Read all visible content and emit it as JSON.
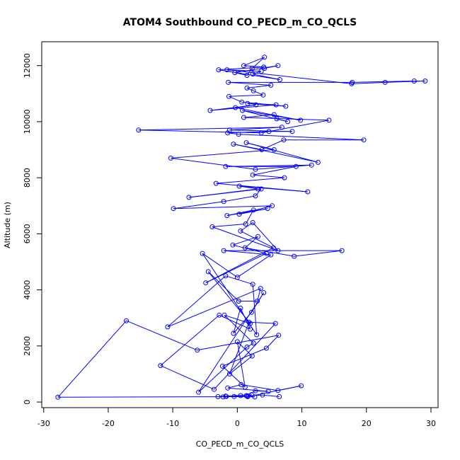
{
  "chart_data": {
    "type": "line",
    "title": "ATOM4 Southbound CO_PECD_m_CO_QCLS",
    "xlabel": "CO_PECD_m_CO_QCLS",
    "ylabel": "Altitude (m)",
    "xlim": [
      -30.3,
      31.1
    ],
    "ylim": [
      -200,
      12850
    ],
    "xticks": [
      -30,
      -20,
      -10,
      0,
      10,
      20,
      30
    ],
    "yticks": [
      0,
      2000,
      4000,
      6000,
      8000,
      10000,
      12000
    ],
    "marker": "open-circle",
    "line_color": "#0000ff",
    "grid": false,
    "series": [
      {
        "x": [
          6.5,
          3.9,
          1.6,
          2.7,
          -0.5,
          0.5,
          -3.0,
          2.2,
          -1.7,
          -2.2,
          -1.8,
          1.4,
          2.8,
          4.8,
          -1.5,
          0.6,
          6.3,
          9.9,
          1.6,
          -27.8,
          -17.2,
          -6.2,
          6.4,
          4.5,
          -2.3,
          1.2,
          0.0,
          2.3,
          -1.2,
          1.8,
          5.9,
          -3.6,
          -11.9,
          -2.8,
          2.0,
          0.5,
          -0.6,
          2.2,
          4.1,
          -6.0,
          1.5,
          2.5,
          -2.0,
          2.0,
          -4.5,
          0.2,
          3.1,
          3.6,
          -10.8,
          -1.8,
          2.4,
          3.0,
          -5.4,
          0.0,
          5.2,
          -2.1,
          16.2,
          8.8,
          1.2,
          3.2,
          -0.7,
          4.5,
          -4.9,
          5.6,
          0.5,
          2.4,
          6.3,
          -3.9,
          1.3,
          2.5,
          -1.6,
          4.7,
          0.3,
          5.4,
          -9.9,
          -2.1,
          2.8,
          3.7,
          -7.5,
          3.2,
          0.3,
          10.9,
          -3.3,
          7.3,
          2.4,
          9.1,
          -1.8,
          11.5,
          2.8,
          -10.3,
          5.7,
          1.4,
          12.5,
          -0.6,
          3.8,
          7.2,
          19.6,
          0.2,
          -1.5,
          4.9,
          8.5,
          -1.2,
          6.9,
          -15.3,
          3.7,
          14.2,
          1.0,
          5.7,
          6.1,
          7.8,
          0.8,
          9.8,
          -0.3,
          2.9,
          -4.2,
          6.0,
          1.6,
          7.5,
          0.7,
          -1.3,
          4.0,
          2.5,
          1.5,
          5.2,
          -1.4,
          17.8,
          27.4,
          29.1,
          22.9,
          17.7,
          -1.6,
          3.7,
          2.4,
          6.6,
          -2.9,
          4.1,
          1.0,
          4.2,
          2.3,
          1.5,
          -0.4,
          6.3,
          4.2
        ],
        "y": [
          190,
          250,
          220,
          180,
          200,
          230,
          190,
          260,
          200,
          180,
          210,
          230,
          400,
          380,
          500,
          620,
          410,
          580,
          190,
          170,
          2900,
          1850,
          2380,
          1920,
          1280,
          530,
          2150,
          1640,
          1000,
          2850,
          2800,
          450,
          1300,
          3100,
          2600,
          3350,
          2450,
          3200,
          3900,
          350,
          1960,
          2100,
          3100,
          2800,
          4650,
          3600,
          3600,
          4050,
          2680,
          4500,
          4200,
          2400,
          5300,
          4450,
          5250,
          5400,
          5400,
          5200,
          5500,
          5900,
          5600,
          5300,
          4250,
          5500,
          6100,
          6400,
          5400,
          6250,
          6350,
          6850,
          6650,
          6900,
          6700,
          7000,
          6900,
          7150,
          7350,
          7600,
          7300,
          7600,
          7700,
          7500,
          7800,
          8000,
          8100,
          8400,
          8400,
          8450,
          8300,
          8700,
          9000,
          9250,
          8550,
          9200,
          9000,
          9350,
          9350,
          9550,
          9600,
          9650,
          9650,
          9700,
          9800,
          9700,
          9600,
          10050,
          10150,
          10250,
          10100,
          10000,
          10400,
          10050,
          10500,
          10600,
          10400,
          10600,
          10650,
          10550,
          10700,
          10900,
          10950,
          11100,
          11200,
          11300,
          11400,
          11400,
          11450,
          11450,
          11400,
          11350,
          11850,
          11800,
          11700,
          11500,
          11850,
          11950,
          12000,
          12300,
          11900,
          11650,
          11750,
          12000,
          11900
        ]
      }
    ]
  }
}
